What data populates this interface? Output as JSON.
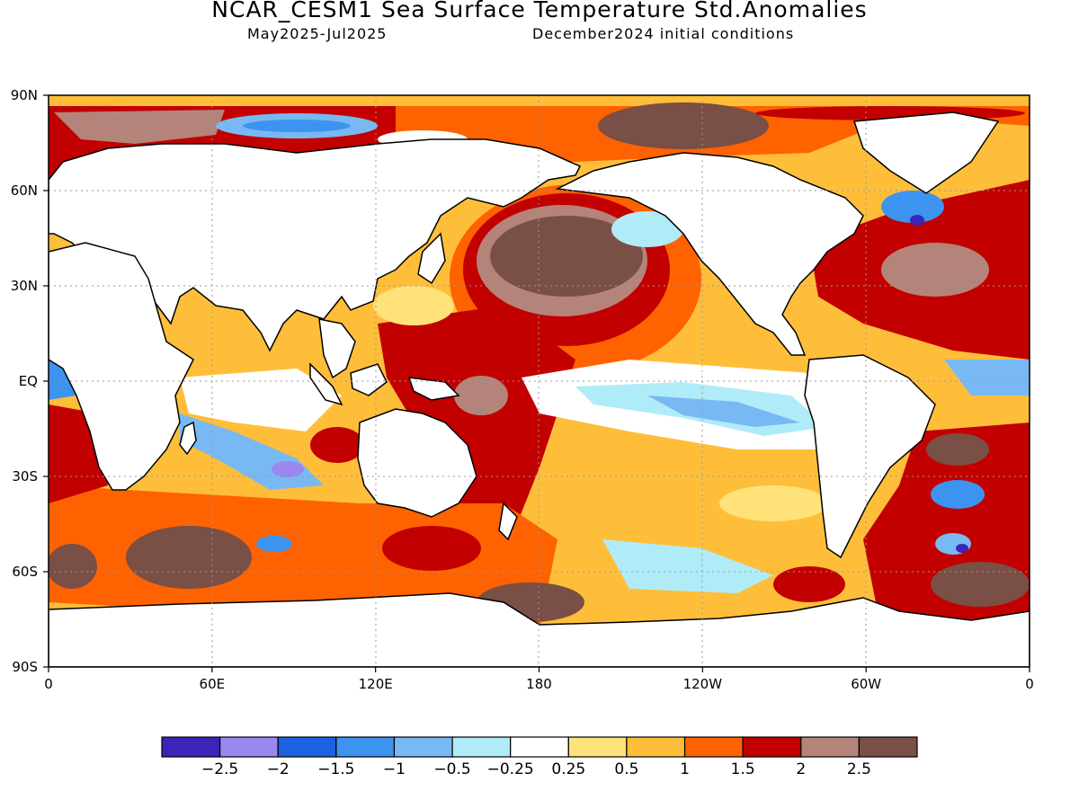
{
  "header": {
    "title": "NCAR_CESM1 Sea Surface Temperature Std.Anomalies",
    "period": "May2025-Jul2025",
    "init": "December2024 initial conditions"
  },
  "axes": {
    "lat_labels": [
      "90N",
      "60N",
      "30N",
      "EQ",
      "30S",
      "60S",
      "90S"
    ],
    "lat_values": [
      90,
      60,
      30,
      0,
      -30,
      -60,
      -90
    ],
    "lon_labels": [
      "0",
      "60E",
      "120E",
      "180",
      "120W",
      "60W",
      "0"
    ],
    "lon_values": [
      0,
      60,
      120,
      180,
      240,
      300,
      360
    ]
  },
  "colorbar": {
    "colors": [
      "#3b24b8",
      "#9b87f0",
      "#1c62e0",
      "#3d94f0",
      "#78b9f4",
      "#b0ecf8",
      "#ffffff",
      "#ffe27a",
      "#ffbe3a",
      "#ff6200",
      "#c20000",
      "#b4847a",
      "#7a4f45"
    ],
    "labels": [
      "−2.5",
      "−2",
      "−1.5",
      "−1",
      "−0.5",
      "−0.25",
      "0.25",
      "0.5",
      "1",
      "1.5",
      "2",
      "2.5"
    ]
  },
  "colors": {
    "land": "#ffffff",
    "ocean_base": "#ffbe3a"
  }
}
